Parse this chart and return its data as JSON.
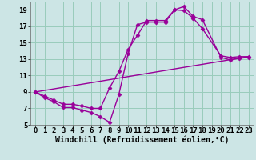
{
  "background_color": "#cce5e5",
  "grid_color": "#99ccbb",
  "line_color": "#990099",
  "line_width": 1.0,
  "marker": "D",
  "marker_size": 2.5,
  "xlabel": "Windchill (Refroidissement éolien,°C)",
  "xlabel_fontsize": 7.0,
  "xlim": [
    -0.5,
    23.5
  ],
  "ylim": [
    5,
    20
  ],
  "xticks": [
    0,
    1,
    2,
    3,
    4,
    5,
    6,
    7,
    8,
    9,
    10,
    11,
    12,
    13,
    14,
    15,
    16,
    17,
    18,
    19,
    20,
    21,
    22,
    23
  ],
  "yticks": [
    5,
    7,
    9,
    11,
    13,
    15,
    17,
    19
  ],
  "tick_fontsize": 6.5,
  "series": [
    {
      "x": [
        0,
        1,
        2,
        3,
        4,
        5,
        6,
        7,
        8,
        9,
        10,
        11,
        12,
        13,
        14,
        15,
        16,
        17,
        18,
        20,
        21,
        22,
        23
      ],
      "y": [
        9.0,
        8.3,
        7.8,
        7.1,
        7.1,
        6.8,
        6.5,
        6.0,
        5.3,
        8.7,
        13.7,
        17.2,
        17.5,
        17.5,
        17.5,
        19.0,
        19.4,
        18.2,
        17.8,
        13.2,
        12.9,
        13.1,
        13.2
      ]
    },
    {
      "x": [
        0,
        1,
        2,
        3,
        4,
        5,
        6,
        7,
        8,
        9,
        10,
        11,
        12,
        13,
        14,
        15,
        16,
        17,
        18,
        20,
        21,
        22,
        23
      ],
      "y": [
        9.0,
        8.5,
        8.0,
        7.5,
        7.5,
        7.3,
        7.0,
        7.0,
        9.5,
        11.5,
        14.2,
        15.9,
        17.7,
        17.7,
        17.7,
        19.0,
        18.9,
        18.0,
        16.7,
        13.4,
        13.2,
        13.3,
        13.3
      ]
    },
    {
      "x": [
        0,
        23
      ],
      "y": [
        9.0,
        13.3
      ],
      "marker": false
    }
  ]
}
